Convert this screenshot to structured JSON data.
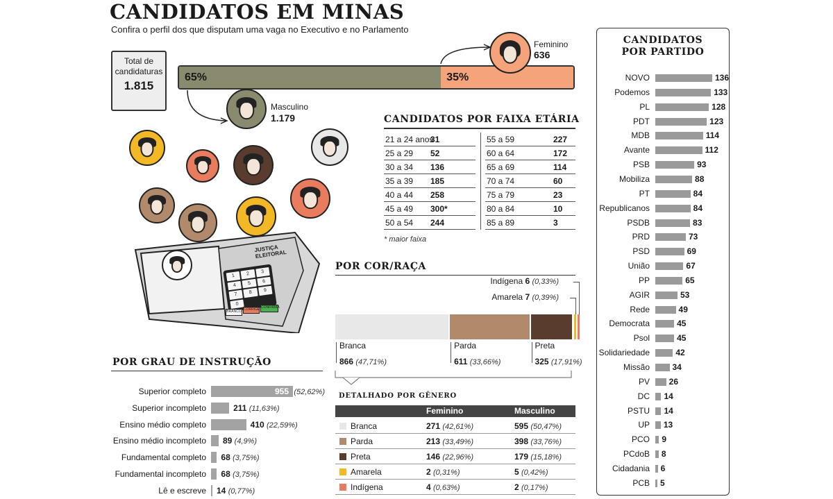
{
  "header": {
    "title": "CANDIDATOS EM MINAS",
    "subtitle": "Confira o perfil dos que disputam uma vaga no Executivo e no Parlamento"
  },
  "total": {
    "label_line1": "Total de",
    "label_line2": "candidaturas",
    "value": "1.815"
  },
  "gender": {
    "male_pct": "65%",
    "female_pct": "35%",
    "male_label": "Masculino",
    "male_value": "1.179",
    "female_label": "Feminino",
    "female_value": "636",
    "male_share": 0.65,
    "colors": {
      "male": "#8a8a6e",
      "female": "#f5a37a"
    }
  },
  "age": {
    "title": "CANDIDATOS POR FAIXA ETÁRIA",
    "note": "* maior faixa",
    "left": [
      {
        "range": "21 a 24 anos",
        "value": "31"
      },
      {
        "range": "25 a 29",
        "value": "52"
      },
      {
        "range": "30 a 34",
        "value": "136"
      },
      {
        "range": "35 a 39",
        "value": "185"
      },
      {
        "range": "40 a 44",
        "value": "258"
      },
      {
        "range": "45 a 49",
        "value": "300*"
      },
      {
        "range": "50 a 54",
        "value": "244"
      }
    ],
    "right": [
      {
        "range": "55 a 59",
        "value": "227"
      },
      {
        "range": "60 a 64",
        "value": "172"
      },
      {
        "range": "65 a 69",
        "value": "114"
      },
      {
        "range": "70 a 74",
        "value": "60"
      },
      {
        "range": "75 a 79",
        "value": "23"
      },
      {
        "range": "80 a 84",
        "value": "10"
      },
      {
        "range": "85 a 89",
        "value": "3"
      }
    ]
  },
  "race": {
    "title": "POR COR/RAÇA",
    "segments": [
      {
        "name": "Branca",
        "value": "866",
        "pct": "(47,71%)",
        "share": 0.4771,
        "color": "#e8e8e8"
      },
      {
        "name": "Parda",
        "value": "611",
        "pct": "(33,66%)",
        "share": 0.3366,
        "color": "#b08a6a"
      },
      {
        "name": "Preta",
        "value": "325",
        "pct": "(17,91%)",
        "share": 0.1791,
        "color": "#5a3c2e"
      },
      {
        "name": "Amarela",
        "value": "7",
        "pct": "(0,39%)",
        "share": 0.0039,
        "color": "#f2b825"
      },
      {
        "name": "Indígena",
        "value": "6",
        "pct": "(0,33%)",
        "share": 0.0033,
        "color": "#e97b5f"
      }
    ]
  },
  "gender_detail": {
    "title": "DETALHADO POR GÊNERO",
    "col_fem": "Feminino",
    "col_masc": "Masculino",
    "rows": [
      {
        "name": "Branca",
        "fem": "271",
        "fem_pct": "(42,61%)",
        "masc": "595",
        "masc_pct": "(50,47%)",
        "color": "#e8e8e8"
      },
      {
        "name": "Parda",
        "fem": "213",
        "fem_pct": "(33,49%)",
        "masc": "398",
        "masc_pct": "(33,76%)",
        "color": "#b08a6a"
      },
      {
        "name": "Preta",
        "fem": "146",
        "fem_pct": "(22,96%)",
        "masc": "179",
        "masc_pct": "(15,18%)",
        "color": "#5a3c2e"
      },
      {
        "name": "Amarela",
        "fem": "2",
        "fem_pct": "(0,31%)",
        "masc": "5",
        "masc_pct": "(0,42%)",
        "color": "#f2b825"
      },
      {
        "name": "Indígena",
        "fem": "4",
        "fem_pct": "(0,63%)",
        "masc": "2",
        "masc_pct": "(0,17%)",
        "color": "#e97b5f"
      }
    ]
  },
  "education": {
    "title": "POR GRAU DE INSTRUÇÃO",
    "rows": [
      {
        "label": "Superior completo",
        "value": "955",
        "pct": "(52,62%)",
        "n": 955
      },
      {
        "label": "Superior incompleto",
        "value": "211",
        "pct": "(11,63%)",
        "n": 211
      },
      {
        "label": "Ensino médio completo",
        "value": "410",
        "pct": "(22,59%)",
        "n": 410
      },
      {
        "label": "Ensino médio incompleto",
        "value": "89",
        "pct": "(4,9%)",
        "n": 89
      },
      {
        "label": "Fundamental completo",
        "value": "68",
        "pct": "(3,75%)",
        "n": 68
      },
      {
        "label": "Fundamental incompleto",
        "value": "68",
        "pct": "(3,75%)",
        "n": 68
      },
      {
        "label": "Lê e escreve",
        "value": "14",
        "pct": "(0,77%)",
        "n": 14
      }
    ]
  },
  "machine": {
    "brand_line1": "JUSTIÇA",
    "brand_line2": "ELEITORAL",
    "keys": [
      "1",
      "2",
      "3",
      "4",
      "5",
      "6",
      "7",
      "8",
      "9",
      "0"
    ],
    "btn_branco": "BRANCO",
    "btn_corrige": "CORRIGE",
    "btn_confirma": "CONFIRMA"
  },
  "party": {
    "title_line1": "CANDIDATOS",
    "title_line2": "POR PARTIDO",
    "max": 136,
    "rows": [
      {
        "name": "NOVO",
        "value": 136
      },
      {
        "name": "Podemos",
        "value": 133
      },
      {
        "name": "PL",
        "value": 128
      },
      {
        "name": "PDT",
        "value": 123
      },
      {
        "name": "MDB",
        "value": 114
      },
      {
        "name": "Avante",
        "value": 112
      },
      {
        "name": "PSB",
        "value": 93
      },
      {
        "name": "Mobiliza",
        "value": 88
      },
      {
        "name": "PT",
        "value": 84
      },
      {
        "name": "Republicanos",
        "value": 84
      },
      {
        "name": "PSDB",
        "value": 83
      },
      {
        "name": "PRD",
        "value": 73
      },
      {
        "name": "PSD",
        "value": 69
      },
      {
        "name": "União",
        "value": 67
      },
      {
        "name": "PP",
        "value": 65
      },
      {
        "name": "AGIR",
        "value": 53
      },
      {
        "name": "Rede",
        "value": 49
      },
      {
        "name": "Democrata",
        "value": 45
      },
      {
        "name": "Psol",
        "value": 45
      },
      {
        "name": "Solidariedade",
        "value": 42
      },
      {
        "name": "Missão",
        "value": 34
      },
      {
        "name": "PV",
        "value": 26
      },
      {
        "name": "DC",
        "value": 14
      },
      {
        "name": "PSTU",
        "value": 14
      },
      {
        "name": "UP",
        "value": 13
      },
      {
        "name": "PCO",
        "value": 9
      },
      {
        "name": "PCdoB",
        "value": 8
      },
      {
        "name": "Cidadania",
        "value": 6
      },
      {
        "name": "PCB",
        "value": 5
      }
    ]
  },
  "chart_data": [
    {
      "type": "bar",
      "title": "CANDIDATOS POR PARTIDO",
      "categories": [
        "NOVO",
        "Podemos",
        "PL",
        "PDT",
        "MDB",
        "Avante",
        "PSB",
        "Mobiliza",
        "PT",
        "Republicanos",
        "PSDB",
        "PRD",
        "PSD",
        "União",
        "PP",
        "AGIR",
        "Rede",
        "Democrata",
        "Psol",
        "Solidariedade",
        "Missão",
        "PV",
        "DC",
        "PSTU",
        "UP",
        "PCO",
        "PCdoB",
        "Cidadania",
        "PCB"
      ],
      "values": [
        136,
        133,
        128,
        123,
        114,
        112,
        93,
        88,
        84,
        84,
        83,
        73,
        69,
        67,
        65,
        53,
        49,
        45,
        45,
        42,
        34,
        26,
        14,
        14,
        13,
        9,
        8,
        6,
        5
      ]
    },
    {
      "type": "bar",
      "title": "POR GRAU DE INSTRUÇÃO",
      "categories": [
        "Superior completo",
        "Superior incompleto",
        "Ensino médio completo",
        "Ensino médio incompleto",
        "Fundamental completo",
        "Fundamental incompleto",
        "Lê e escreve"
      ],
      "values": [
        955,
        211,
        410,
        89,
        68,
        68,
        14
      ]
    },
    {
      "type": "bar",
      "title": "POR COR/RAÇA",
      "categories": [
        "Branca",
        "Parda",
        "Preta",
        "Amarela",
        "Indígena"
      ],
      "values": [
        866,
        611,
        325,
        7,
        6
      ]
    },
    {
      "type": "table",
      "title": "CANDIDATOS POR FAIXA ETÁRIA",
      "categories": [
        "21 a 24 anos",
        "25 a 29",
        "30 a 34",
        "35 a 39",
        "40 a 44",
        "45 a 49",
        "50 a 54",
        "55 a 59",
        "60 a 64",
        "65 a 69",
        "70 a 74",
        "75 a 79",
        "80 a 84",
        "85 a 89"
      ],
      "values": [
        31,
        52,
        136,
        185,
        258,
        300,
        244,
        227,
        172,
        114,
        60,
        23,
        10,
        3
      ]
    },
    {
      "type": "bar",
      "categories": [
        "Masculino",
        "Feminino"
      ],
      "values": [
        1179,
        636
      ]
    }
  ]
}
